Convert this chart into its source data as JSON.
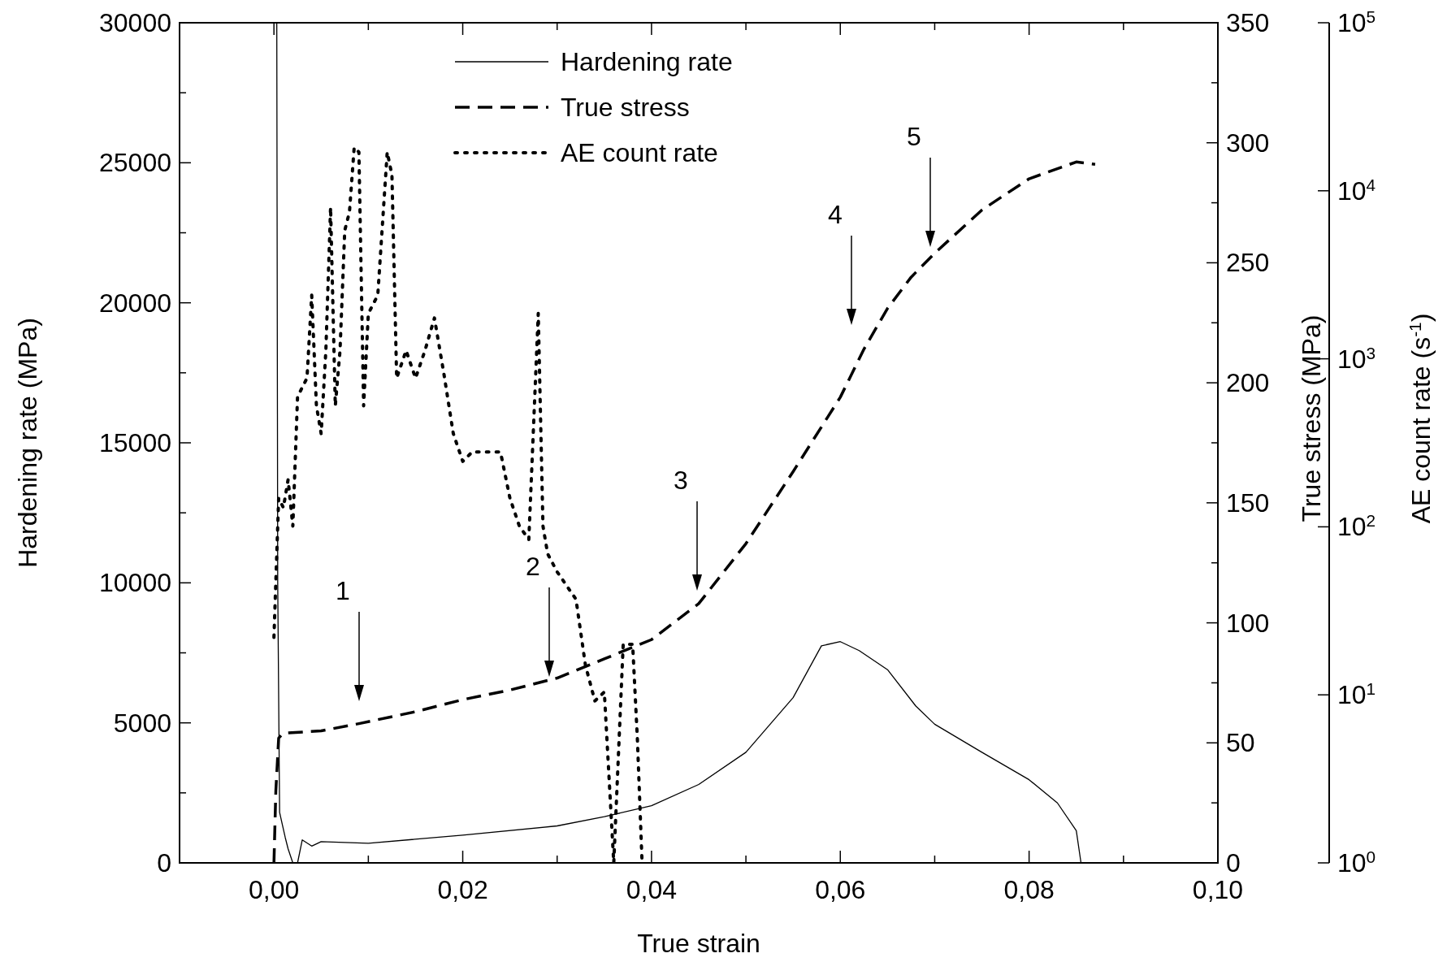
{
  "chart_data": {
    "type": "line",
    "xlabel": "True strain",
    "ylabel": "Hardening rate (MPa)",
    "y2label": "True stress (MPa)",
    "y3label": "AE count rate (s$^{-1}$)",
    "xlim": [
      -0.01,
      0.1
    ],
    "xticks": [
      {
        "value": -0.01,
        "label": null
      },
      {
        "value": 0,
        "label": "0,00"
      },
      {
        "value": 0.01,
        "label": null
      },
      {
        "value": 0.02,
        "label": "0,02"
      },
      {
        "value": 0.03,
        "label": null
      },
      {
        "value": 0.04,
        "label": "0,04"
      },
      {
        "value": 0.05,
        "label": null
      },
      {
        "value": 0.06,
        "label": "0,06"
      },
      {
        "value": 0.07,
        "label": null
      },
      {
        "value": 0.08,
        "label": "0,08"
      },
      {
        "value": 0.09,
        "label": null
      },
      {
        "value": 0.1,
        "label": "0,10"
      }
    ],
    "ylim": [
      0,
      30000
    ],
    "yticks": [
      0,
      {
        "value": 2500,
        "label": null
      },
      5000,
      {
        "value": 7500,
        "label": null
      },
      10000,
      {
        "value": 12500,
        "label": null
      },
      15000,
      {
        "value": 17500,
        "label": null
      },
      20000,
      {
        "value": 22500,
        "label": null
      },
      25000,
      {
        "value": 27500,
        "label": null
      },
      30000
    ],
    "y2lim": [
      0,
      350
    ],
    "y2ticks": [
      0,
      {
        "value": 25,
        "label": null
      },
      50,
      {
        "value": 75,
        "label": null
      },
      100,
      {
        "value": 125,
        "label": null
      },
      150,
      {
        "value": 175,
        "label": null
      },
      200,
      {
        "value": 225,
        "label": null
      },
      250,
      {
        "value": 275,
        "label": null
      },
      300,
      {
        "value": 325,
        "label": null
      },
      350
    ],
    "y3lim": [
      1,
      100000
    ],
    "y3ticks": [
      {
        "value": 1,
        "label": "10$^{0}$"
      },
      {
        "value": 10,
        "label": "10$^{1}$"
      },
      {
        "value": 100,
        "label": "10$^{2}$"
      },
      {
        "value": 1000,
        "label": "10$^{3}$"
      },
      {
        "value": 10000,
        "label": "10$^{4}$"
      },
      {
        "value": 100000,
        "label": "10$^{5}$"
      }
    ],
    "log": "y3",
    "legend": "top",
    "grid": false,
    "series": [
      {
        "name": "Hardening rate",
        "color": "#000000",
        "line_style": "solid",
        "x": [
          0.0003,
          0.0004,
          0.0006,
          0.0012,
          0.0015,
          0.002,
          0.0025,
          0.003,
          0.004,
          0.005,
          0.01,
          0.02,
          0.03,
          0.035,
          0.04,
          0.045,
          0.05,
          0.055,
          0.058,
          0.06,
          0.062,
          0.065,
          0.068,
          0.07,
          0.075,
          0.08,
          0.083,
          0.085,
          0.0855
        ],
        "values": [
          30000,
          10000,
          1800,
          900,
          500,
          0,
          0,
          820,
          600,
          760,
          700,
          990,
          1320,
          1650,
          2040,
          2800,
          3950,
          5900,
          7750,
          7900,
          7580,
          6900,
          5600,
          4950,
          3950,
          2970,
          2140,
          1150,
          0
        ]
      },
      {
        "name": "True stress",
        "color": "#000000",
        "line_style": "dashed",
        "axis": "y2",
        "x": [
          0,
          0.0002,
          0.0005,
          0.001,
          0.005,
          0.009,
          0.015,
          0.02,
          0.025,
          0.03,
          0.035,
          0.04,
          0.045,
          0.05,
          0.055,
          0.06,
          0.0625,
          0.065,
          0.0675,
          0.07,
          0.075,
          0.08,
          0.085,
          0.087
        ],
        "values": [
          0,
          30,
          52,
          54,
          55,
          58,
          63,
          68,
          72,
          77,
          85,
          93,
          108,
          133,
          163,
          194,
          214,
          231,
          244,
          254,
          272,
          285,
          292,
          291
        ]
      },
      {
        "name": "AE count rate",
        "color": "#000000",
        "line_style": "dotted",
        "axis": "y3",
        "x": [
          0,
          0.0005,
          0.001,
          0.0015,
          0.002,
          0.0025,
          0.003,
          0.0035,
          0.004,
          0.0045,
          0.005,
          0.0055,
          0.006,
          0.0065,
          0.007,
          0.0075,
          0.008,
          0.0085,
          0.009,
          0.0095,
          0.01,
          0.011,
          0.012,
          0.0125,
          0.013,
          0.014,
          0.015,
          0.016,
          0.017,
          0.018,
          0.019,
          0.02,
          0.021,
          0.023,
          0.024,
          0.025,
          0.026,
          0.027,
          0.028,
          0.0285,
          0.029,
          0.03,
          0.032,
          0.033,
          0.034,
          0.035,
          0.036,
          0.037,
          0.038,
          0.0385,
          0.039
        ],
        "values": [
          22,
          148,
          130,
          191,
          101,
          595,
          676,
          767,
          2390,
          525,
          359,
          1120,
          7960,
          525,
          1120,
          5800,
          7480,
          18100,
          17000,
          525,
          1860,
          2390,
          17000,
          12400,
          767,
          1120,
          767,
          1120,
          1750,
          817,
          359,
          245,
          279,
          279,
          279,
          148,
          101,
          84,
          1860,
          101,
          69,
          54,
          37,
          15,
          9.2,
          10.4,
          1,
          20,
          20,
          5.5,
          1
        ]
      }
    ],
    "annotations": [
      "1",
      "2",
      "3",
      "4",
      "5"
    ]
  }
}
